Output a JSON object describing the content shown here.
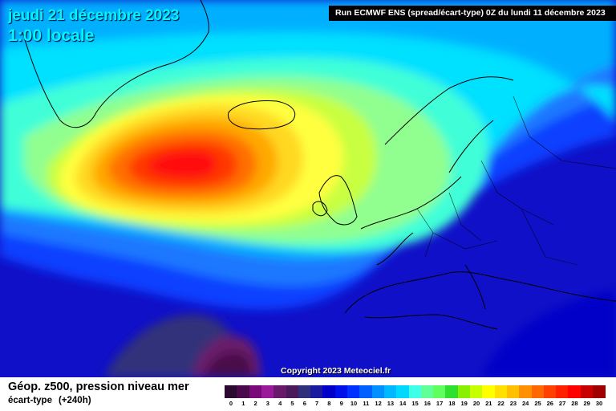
{
  "header": {
    "date": "jeudi 21 décembre 2023",
    "time": "1:00 locale",
    "run": "Run ECMWF ENS (spread/écart-type) 0Z du lundi 11 décembre 2023"
  },
  "copyright": "Copyright 2023 Meteociel.fr",
  "legend": {
    "title": "Géop. z500, pression niveau mer",
    "subtitle": "écart-type",
    "lead": "(+240h)",
    "ticks": [
      "0",
      "1",
      "2",
      "3",
      "4",
      "5",
      "6",
      "7",
      "8",
      "9",
      "10",
      "11",
      "12",
      "13",
      "14",
      "15",
      "16",
      "17",
      "18",
      "19",
      "20",
      "21",
      "22",
      "23",
      "24",
      "25",
      "26",
      "27",
      "28",
      "29",
      "30"
    ],
    "colors": [
      "#2a0a2e",
      "#4a0a4a",
      "#7a0a7a",
      "#9a1a9a",
      "#6a1a6a",
      "#4a1a5a",
      "#30307a",
      "#1a1aa0",
      "#0000c8",
      "#0010e8",
      "#0030ff",
      "#0060ff",
      "#0090ff",
      "#00b8ff",
      "#00d8ff",
      "#40ffe8",
      "#60ff98",
      "#60ff60",
      "#30e030",
      "#88f000",
      "#c8ff00",
      "#ffff00",
      "#ffe000",
      "#ffc000",
      "#ff9000",
      "#ff6800",
      "#ff4000",
      "#ff2000",
      "#ff0000",
      "#c80000",
      "#a00000"
    ]
  },
  "map": {
    "background_color": "#1010c8",
    "spread_color_levels": [
      "#1010c8",
      "#0a40ff",
      "#1a78ff",
      "#00b0ff",
      "#00e0ff",
      "#40ffd8",
      "#90ff90",
      "#c8ff40",
      "#ffff40",
      "#ffd820",
      "#ffa800",
      "#ff7000",
      "#ff3800",
      "#ff1010"
    ]
  }
}
